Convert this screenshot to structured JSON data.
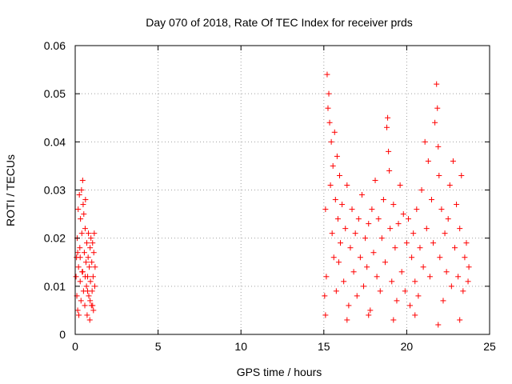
{
  "chart_data": {
    "type": "scatter",
    "title": "Day 070 of 2018, Rate Of TEC Index for receiver prds",
    "xlabel": "GPS time / hours",
    "ylabel": "ROTI / TECUs",
    "xlim": [
      0,
      25
    ],
    "ylim": [
      0,
      0.06
    ],
    "x_ticks": [
      0,
      5,
      10,
      15,
      20,
      25
    ],
    "x_tick_labels": [
      "0",
      "5",
      "10",
      "15",
      "20",
      "25"
    ],
    "y_ticks": [
      0,
      0.01,
      0.02,
      0.03,
      0.04,
      0.05,
      0.06
    ],
    "y_tick_labels": [
      "0",
      "0.01",
      "0.02",
      "0.03",
      "0.04",
      "0.05",
      "0.06"
    ],
    "grid": true,
    "marker": "+",
    "color": "#ff0000",
    "series": [
      {
        "points": [
          [
            0.05,
            0.012
          ],
          [
            0.08,
            0.016
          ],
          [
            0.1,
            0.008
          ],
          [
            0.12,
            0.02
          ],
          [
            0.15,
            0.005
          ],
          [
            0.18,
            0.026
          ],
          [
            0.2,
            0.014
          ],
          [
            0.22,
            0.004
          ],
          [
            0.25,
            0.029
          ],
          [
            0.28,
            0.018
          ],
          [
            0.3,
            0.011
          ],
          [
            0.32,
            0.024
          ],
          [
            0.35,
            0.007
          ],
          [
            0.38,
            0.03
          ],
          [
            0.4,
            0.021
          ],
          [
            0.42,
            0.013
          ],
          [
            0.45,
            0.032
          ],
          [
            0.48,
            0.027
          ],
          [
            0.5,
            0.009
          ],
          [
            0.52,
            0.025
          ],
          [
            0.55,
            0.017
          ],
          [
            0.58,
            0.006
          ],
          [
            0.6,
            0.022
          ],
          [
            0.62,
            0.028
          ],
          [
            0.65,
            0.015
          ],
          [
            0.68,
            0.01
          ],
          [
            0.7,
            0.019
          ],
          [
            0.72,
            0.004
          ],
          [
            0.75,
            0.012
          ],
          [
            0.78,
            0.016
          ],
          [
            0.8,
            0.021
          ],
          [
            0.82,
            0.008
          ],
          [
            0.85,
            0.014
          ],
          [
            0.88,
            0.003
          ],
          [
            0.9,
            0.018
          ],
          [
            0.92,
            0.011
          ],
          [
            0.95,
            0.02
          ],
          [
            0.98,
            0.006
          ],
          [
            1.0,
            0.015
          ],
          [
            1.02,
            0.009
          ],
          [
            1.05,
            0.019
          ],
          [
            1.08,
            0.012
          ],
          [
            1.1,
            0.005
          ],
          [
            1.12,
            0.017
          ],
          [
            1.15,
            0.021
          ],
          [
            1.18,
            0.01
          ],
          [
            1.2,
            0.014
          ],
          [
            0.15,
            0.017
          ],
          [
            0.3,
            0.016
          ],
          [
            0.45,
            0.013
          ],
          [
            0.6,
            0.012
          ],
          [
            0.75,
            0.009
          ],
          [
            0.9,
            0.007
          ],
          [
            1.05,
            0.006
          ],
          [
            15.05,
            0.008
          ],
          [
            15.1,
            0.026
          ],
          [
            15.15,
            0.012
          ],
          [
            15.2,
            0.054
          ],
          [
            15.25,
            0.047
          ],
          [
            15.3,
            0.05
          ],
          [
            15.35,
            0.044
          ],
          [
            15.4,
            0.031
          ],
          [
            15.45,
            0.04
          ],
          [
            15.5,
            0.021
          ],
          [
            15.55,
            0.035
          ],
          [
            15.6,
            0.016
          ],
          [
            15.65,
            0.042
          ],
          [
            15.7,
            0.028
          ],
          [
            15.75,
            0.009
          ],
          [
            15.8,
            0.037
          ],
          [
            15.85,
            0.024
          ],
          [
            15.9,
            0.015
          ],
          [
            15.95,
            0.033
          ],
          [
            16.0,
            0.019
          ],
          [
            16.1,
            0.027
          ],
          [
            16.2,
            0.011
          ],
          [
            16.3,
            0.022
          ],
          [
            16.4,
            0.031
          ],
          [
            16.5,
            0.006
          ],
          [
            16.6,
            0.018
          ],
          [
            16.7,
            0.026
          ],
          [
            16.8,
            0.013
          ],
          [
            16.9,
            0.021
          ],
          [
            17.0,
            0.008
          ],
          [
            17.1,
            0.024
          ],
          [
            17.2,
            0.016
          ],
          [
            17.3,
            0.029
          ],
          [
            17.4,
            0.01
          ],
          [
            17.5,
            0.02
          ],
          [
            17.6,
            0.014
          ],
          [
            17.7,
            0.023
          ],
          [
            17.8,
            0.005
          ],
          [
            17.9,
            0.026
          ],
          [
            18.0,
            0.017
          ],
          [
            18.1,
            0.032
          ],
          [
            18.2,
            0.012
          ],
          [
            18.3,
            0.024
          ],
          [
            18.4,
            0.009
          ],
          [
            18.5,
            0.02
          ],
          [
            18.6,
            0.028
          ],
          [
            18.7,
            0.015
          ],
          [
            18.8,
            0.043
          ],
          [
            18.85,
            0.045
          ],
          [
            18.9,
            0.038
          ],
          [
            18.95,
            0.034
          ],
          [
            19.0,
            0.022
          ],
          [
            19.1,
            0.011
          ],
          [
            19.2,
            0.027
          ],
          [
            19.3,
            0.018
          ],
          [
            19.4,
            0.007
          ],
          [
            19.5,
            0.023
          ],
          [
            19.6,
            0.031
          ],
          [
            19.7,
            0.013
          ],
          [
            19.8,
            0.025
          ],
          [
            19.9,
            0.009
          ],
          [
            20.0,
            0.019
          ],
          [
            20.1,
            0.024
          ],
          [
            20.2,
            0.006
          ],
          [
            20.3,
            0.016
          ],
          [
            20.4,
            0.021
          ],
          [
            20.5,
            0.011
          ],
          [
            20.6,
            0.026
          ],
          [
            20.7,
            0.008
          ],
          [
            20.8,
            0.018
          ],
          [
            20.9,
            0.03
          ],
          [
            21.0,
            0.014
          ],
          [
            21.1,
            0.04
          ],
          [
            21.2,
            0.022
          ],
          [
            21.3,
            0.036
          ],
          [
            21.4,
            0.012
          ],
          [
            21.5,
            0.028
          ],
          [
            21.6,
            0.019
          ],
          [
            21.7,
            0.044
          ],
          [
            21.8,
            0.052
          ],
          [
            21.85,
            0.047
          ],
          [
            21.9,
            0.039
          ],
          [
            21.95,
            0.033
          ],
          [
            22.0,
            0.016
          ],
          [
            22.1,
            0.026
          ],
          [
            22.2,
            0.007
          ],
          [
            22.3,
            0.021
          ],
          [
            22.4,
            0.013
          ],
          [
            22.5,
            0.024
          ],
          [
            22.6,
            0.031
          ],
          [
            22.7,
            0.01
          ],
          [
            22.8,
            0.036
          ],
          [
            22.9,
            0.018
          ],
          [
            23.0,
            0.027
          ],
          [
            23.1,
            0.012
          ],
          [
            23.2,
            0.022
          ],
          [
            23.3,
            0.033
          ],
          [
            23.4,
            0.009
          ],
          [
            23.5,
            0.016
          ],
          [
            23.6,
            0.019
          ],
          [
            23.7,
            0.011
          ],
          [
            23.75,
            0.014
          ],
          [
            15.1,
            0.004
          ],
          [
            16.4,
            0.003
          ],
          [
            17.7,
            0.004
          ],
          [
            19.2,
            0.003
          ],
          [
            20.5,
            0.004
          ],
          [
            21.9,
            0.002
          ],
          [
            23.2,
            0.003
          ]
        ]
      }
    ]
  }
}
